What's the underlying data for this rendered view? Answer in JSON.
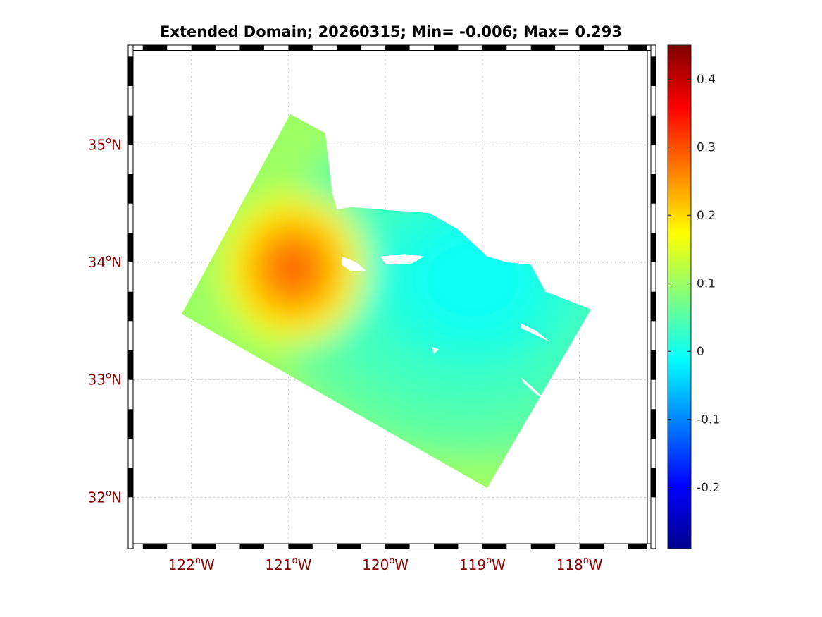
{
  "chart_data": {
    "type": "heatmap",
    "title": "Extended Domain; 20260315; Min= -0.006; Max= 0.293",
    "x_ticks": [
      {
        "value": -122,
        "deg": "122",
        "hemi": "W"
      },
      {
        "value": -121,
        "deg": "121",
        "hemi": "W"
      },
      {
        "value": -120,
        "deg": "120",
        "hemi": "W"
      },
      {
        "value": -119,
        "deg": "119",
        "hemi": "W"
      },
      {
        "value": -118,
        "deg": "118",
        "hemi": "W"
      }
    ],
    "y_ticks": [
      {
        "value": 32,
        "deg": "32",
        "hemi": "N"
      },
      {
        "value": 33,
        "deg": "33",
        "hemi": "N"
      },
      {
        "value": 34,
        "deg": "34",
        "hemi": "N"
      },
      {
        "value": 35,
        "deg": "35",
        "hemi": "N"
      }
    ],
    "xlim": [
      -122.6,
      -117.3
    ],
    "ylim": [
      31.6,
      35.8
    ],
    "grid": true,
    "domain_polygon": [
      [
        -122.1,
        33.56
      ],
      [
        -120.98,
        35.26
      ],
      [
        -120.62,
        35.1
      ],
      [
        -120.55,
        34.6
      ],
      [
        -120.5,
        34.45
      ],
      [
        -120.35,
        34.47
      ],
      [
        -119.9,
        34.44
      ],
      [
        -119.55,
        34.42
      ],
      [
        -119.25,
        34.28
      ],
      [
        -118.95,
        34.05
      ],
      [
        -118.75,
        34.0
      ],
      [
        -118.5,
        33.98
      ],
      [
        -118.35,
        33.75
      ],
      [
        -118.25,
        33.72
      ],
      [
        -117.88,
        33.6
      ],
      [
        -118.95,
        32.08
      ]
    ],
    "field": {
      "background": 0.1,
      "features": [
        {
          "kind": "peak",
          "lon": -120.95,
          "lat": 33.95,
          "value": 0.293,
          "radius_deg": 0.75
        },
        {
          "kind": "low",
          "lon": -119.1,
          "lat": 33.85,
          "value": -0.006,
          "radius_deg": 1.9
        }
      ]
    },
    "islands": [
      [
        [
          -120.45,
          34.05
        ],
        [
          -120.3,
          34.0
        ],
        [
          -120.2,
          33.93
        ],
        [
          -120.35,
          33.92
        ],
        [
          -120.45,
          33.98
        ]
      ],
      [
        [
          -120.05,
          34.05
        ],
        [
          -119.8,
          34.07
        ],
        [
          -119.6,
          34.05
        ],
        [
          -119.75,
          33.98
        ],
        [
          -120.0,
          33.99
        ]
      ],
      [
        [
          -118.6,
          33.48
        ],
        [
          -118.45,
          33.42
        ],
        [
          -118.3,
          33.32
        ],
        [
          -118.45,
          33.38
        ],
        [
          -118.6,
          33.44
        ]
      ],
      [
        [
          -118.6,
          33.02
        ],
        [
          -118.5,
          32.95
        ],
        [
          -118.35,
          32.83
        ],
        [
          -118.45,
          32.88
        ],
        [
          -118.58,
          32.98
        ]
      ],
      [
        [
          -119.52,
          33.28
        ],
        [
          -119.45,
          33.26
        ],
        [
          -119.5,
          33.22
        ]
      ]
    ],
    "colorbar": {
      "colormap": "jet",
      "range": [
        -0.29,
        0.45
      ],
      "ticks": [
        {
          "value": 0.4,
          "label": "0.4"
        },
        {
          "value": 0.3,
          "label": "0.3"
        },
        {
          "value": 0.2,
          "label": "0.2"
        },
        {
          "value": 0.1,
          "label": "0.1"
        },
        {
          "value": 0,
          "label": "0"
        },
        {
          "value": -0.1,
          "label": "-0.1"
        },
        {
          "value": -0.2,
          "label": "-0.2"
        }
      ]
    }
  }
}
